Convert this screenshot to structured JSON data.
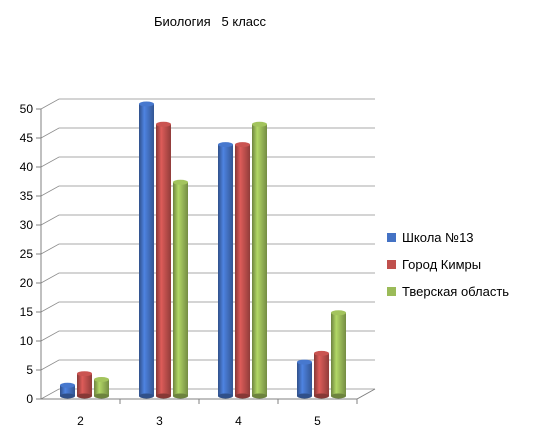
{
  "chart_data": {
    "type": "bar",
    "title": "Биология   5 класс",
    "categories": [
      "2",
      "3",
      "4",
      "5"
    ],
    "series": [
      {
        "name": "Школа №13",
        "color": "#4472C4",
        "values": [
          1.5,
          50,
          43,
          5.5
        ]
      },
      {
        "name": "Город Кимры",
        "color": "#C0504D",
        "values": [
          3.5,
          46.5,
          43,
          7
        ]
      },
      {
        "name": "Тверская область",
        "color": "#9BBB59",
        "values": [
          2.5,
          36.5,
          46.5,
          14
        ]
      }
    ],
    "ylim": [
      0,
      50
    ],
    "yticks": [
      "0",
      "5",
      "10",
      "15",
      "20",
      "25",
      "30",
      "35",
      "40",
      "45",
      "50"
    ],
    "grid": true,
    "legend_position": "right"
  }
}
